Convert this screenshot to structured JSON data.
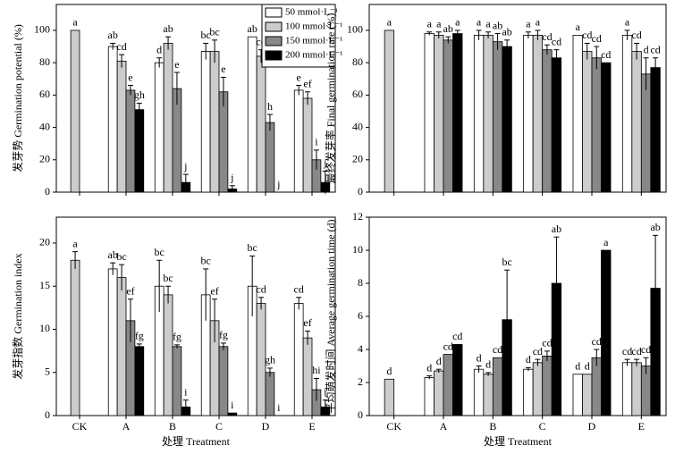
{
  "chart_data": [
    {
      "type": "bar",
      "ylabel": "发芽势 Germination potential (%)",
      "ylim": [
        0,
        116
      ],
      "yticks": [
        0,
        20,
        40,
        60,
        80,
        100
      ],
      "legend": "top-right",
      "series": [
        {
          "name": "50 mmol·L⁻¹",
          "color": "#ffffff",
          "values": [
            null,
            90,
            80,
            87,
            96,
            63
          ],
          "errors": [
            null,
            2,
            3,
            5,
            null,
            3
          ],
          "labels": [
            null,
            "ab",
            "d",
            "bc",
            "ab",
            "e"
          ]
        },
        {
          "name": "100 mmol·L⁻¹",
          "color": "#cccccc",
          "values": [
            100,
            81,
            92,
            87,
            84,
            58
          ],
          "errors": [
            null,
            4,
            4,
            7,
            4,
            4
          ],
          "labels": [
            "a",
            "cd",
            "ab",
            "bc",
            "cd",
            "ef"
          ]
        },
        {
          "name": "150 mmol·L⁻¹",
          "color": "#888888",
          "values": [
            null,
            63,
            64,
            62,
            43,
            20
          ],
          "errors": [
            null,
            3,
            10,
            9,
            5,
            6
          ],
          "labels": [
            null,
            "e",
            "e",
            "e",
            "h",
            "i"
          ]
        },
        {
          "name": "200 mmol·L⁻¹",
          "color": "#000000",
          "values": [
            null,
            51,
            6,
            2,
            0,
            6
          ],
          "errors": [
            null,
            4,
            5,
            2,
            null,
            7
          ],
          "labels": [
            null,
            "gh",
            "j",
            "j",
            "j",
            "j"
          ]
        }
      ]
    },
    {
      "type": "bar",
      "ylabel": "最终发芽率 Final germination rate (%)",
      "ylim": [
        0,
        116
      ],
      "yticks": [
        0,
        20,
        40,
        60,
        80,
        100
      ],
      "series": [
        {
          "values": [
            null,
            98,
            97,
            97,
            97,
            97
          ],
          "errors": [
            null,
            1,
            3,
            2,
            null,
            3
          ],
          "labels": [
            null,
            "a",
            "a",
            "a",
            "a",
            "a"
          ]
        },
        {
          "values": [
            100,
            97,
            97,
            97,
            87,
            87
          ],
          "errors": [
            null,
            2,
            2,
            3,
            5,
            5
          ],
          "labels": [
            "a",
            "a",
            "a",
            "a",
            "cd",
            "cd"
          ]
        },
        {
          "values": [
            null,
            94,
            93,
            88,
            83,
            73
          ],
          "errors": [
            null,
            2,
            5,
            3,
            7,
            10
          ],
          "labels": [
            null,
            "ab",
            "ab",
            "cd",
            "cd",
            "d"
          ]
        },
        {
          "values": [
            null,
            98,
            90,
            83,
            80,
            77
          ],
          "errors": [
            null,
            2,
            4,
            5,
            null,
            6
          ],
          "labels": [
            null,
            "a",
            "ab",
            "cd",
            "cd",
            "cd"
          ]
        }
      ]
    },
    {
      "type": "bar",
      "ylabel": "发芽指数 Germination index",
      "xlabel": "处理 Treatment",
      "categories": [
        "CK",
        "A",
        "B",
        "C",
        "D",
        "E"
      ],
      "ylim": [
        0,
        23
      ],
      "yticks": [
        0,
        5,
        10,
        15,
        20
      ],
      "series": [
        {
          "values": [
            null,
            17,
            15,
            14,
            15,
            13
          ],
          "errors": [
            null,
            0.7,
            3,
            3,
            3.5,
            0.7
          ],
          "labels": [
            null,
            "ab",
            "bc",
            "bc",
            "bc",
            "cd"
          ]
        },
        {
          "values": [
            18,
            16,
            14,
            11,
            13,
            9
          ],
          "errors": [
            1,
            1.5,
            1,
            2.5,
            0.7,
            0.8
          ],
          "labels": [
            "a",
            "bc",
            "bc",
            "ef",
            "cd",
            "ef"
          ]
        },
        {
          "values": [
            null,
            11,
            8,
            8,
            5,
            3
          ],
          "errors": [
            null,
            2.5,
            0.2,
            0.4,
            0.5,
            1.3
          ],
          "labels": [
            null,
            "ef",
            "fg",
            "fg",
            "gh",
            "hi"
          ]
        },
        {
          "values": [
            null,
            8,
            1,
            0.3,
            0,
            1
          ],
          "errors": [
            null,
            0.3,
            0.8,
            null,
            null,
            0.8
          ],
          "labels": [
            null,
            "fg",
            "i",
            "i",
            "i",
            "i"
          ]
        }
      ]
    },
    {
      "type": "bar",
      "ylabel": "平均萌发时间 Average germination time (d)",
      "xlabel": "处理 Treatment",
      "categories": [
        "CK",
        "A",
        "B",
        "C",
        "D",
        "E"
      ],
      "ylim": [
        0,
        12
      ],
      "yticks": [
        0,
        2,
        4,
        6,
        8,
        10,
        12
      ],
      "series": [
        {
          "values": [
            null,
            2.3,
            2.8,
            2.8,
            2.5,
            3.2
          ],
          "errors": [
            null,
            0.1,
            0.2,
            0.1,
            null,
            0.2
          ],
          "labels": [
            null,
            "d",
            "d",
            "d",
            "d",
            "cd"
          ]
        },
        {
          "values": [
            2.2,
            2.7,
            2.5,
            3.2,
            2.5,
            3.2
          ],
          "errors": [
            null,
            0.1,
            0.1,
            0.2,
            null,
            0.2
          ],
          "labels": [
            "d",
            "d",
            "d",
            "cd",
            "d",
            "cd"
          ]
        },
        {
          "values": [
            null,
            3.7,
            3.5,
            3.6,
            3.5,
            3.0
          ],
          "errors": [
            null,
            null,
            null,
            0.3,
            0.5,
            0.5
          ],
          "labels": [
            null,
            "cd",
            "cd",
            "cd",
            "cd",
            "cd"
          ]
        },
        {
          "values": [
            null,
            4.3,
            5.8,
            8,
            10,
            7.7
          ],
          "errors": [
            null,
            null,
            3,
            2.8,
            null,
            3.2
          ],
          "labels": [
            null,
            "cd",
            "bc",
            "ab",
            "a",
            "ab"
          ]
        }
      ]
    }
  ]
}
